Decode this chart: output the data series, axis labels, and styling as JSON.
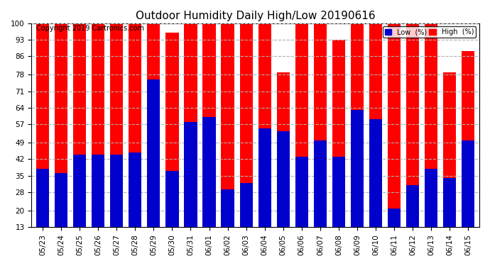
{
  "title": "Outdoor Humidity Daily High/Low 20190616",
  "copyright": "Copyright 2019 Cartronics.com",
  "dates": [
    "05/23",
    "05/24",
    "05/25",
    "05/26",
    "05/27",
    "05/28",
    "05/29",
    "05/30",
    "05/31",
    "06/01",
    "06/02",
    "06/03",
    "06/04",
    "06/05",
    "06/06",
    "06/07",
    "06/08",
    "06/09",
    "06/10",
    "06/11",
    "06/12",
    "06/13",
    "06/14",
    "06/15"
  ],
  "high": [
    100,
    100,
    100,
    100,
    100,
    100,
    100,
    96,
    100,
    100,
    100,
    100,
    100,
    79,
    100,
    100,
    93,
    100,
    100,
    100,
    100,
    100,
    79,
    88
  ],
  "low": [
    38,
    36,
    44,
    44,
    44,
    45,
    76,
    37,
    58,
    60,
    29,
    32,
    55,
    54,
    43,
    50,
    43,
    63,
    59,
    21,
    31,
    38,
    34,
    50
  ],
  "high_color": "#ff0000",
  "low_color": "#0000cc",
  "bg_color": "#ffffff",
  "grid_color": "#b0b0b0",
  "ylim_min": 13,
  "ylim_max": 100,
  "yticks": [
    13,
    20,
    28,
    35,
    42,
    49,
    57,
    64,
    71,
    78,
    86,
    93,
    100
  ],
  "bar_width": 0.7,
  "title_fontsize": 11,
  "tick_fontsize": 7.5,
  "copyright_fontsize": 7
}
